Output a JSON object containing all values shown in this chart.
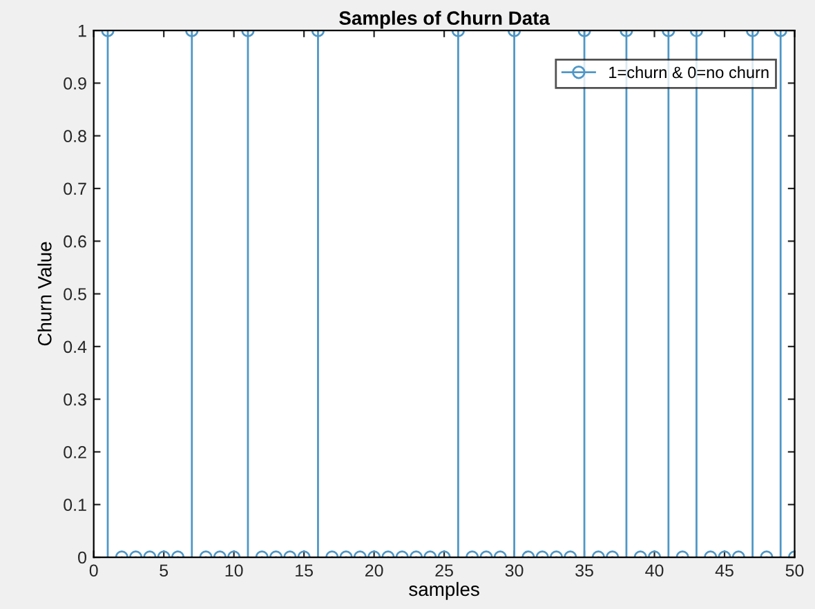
{
  "chart_data": {
    "type": "lollipop",
    "title": "Samples of Churn Data",
    "xlabel": "samples",
    "ylabel": "Churn Value",
    "x": [
      1,
      2,
      3,
      4,
      5,
      6,
      7,
      8,
      9,
      10,
      11,
      12,
      13,
      14,
      15,
      16,
      17,
      18,
      19,
      20,
      21,
      22,
      23,
      24,
      25,
      26,
      27,
      28,
      29,
      30,
      31,
      32,
      33,
      34,
      35,
      36,
      37,
      38,
      39,
      40,
      41,
      42,
      43,
      44,
      45,
      46,
      47,
      48,
      49,
      50
    ],
    "series": [
      {
        "name": "1=churn & 0=no churn",
        "color": "#4f97c6",
        "values": [
          1,
          0,
          0,
          0,
          0,
          0,
          1,
          0,
          0,
          0,
          1,
          0,
          0,
          0,
          0,
          1,
          0,
          0,
          0,
          0,
          0,
          0,
          0,
          0,
          0,
          1,
          0,
          0,
          0,
          1,
          0,
          0,
          0,
          0,
          1,
          0,
          0,
          1,
          0,
          0,
          1,
          0,
          1,
          0,
          0,
          0,
          1,
          0,
          1,
          0
        ]
      }
    ],
    "xlim": [
      0,
      50
    ],
    "xticks": [
      0,
      5,
      10,
      15,
      20,
      25,
      30,
      35,
      40,
      45,
      50
    ],
    "ylim": [
      0,
      1
    ],
    "yticks": [
      0,
      0.1,
      0.2,
      0.3,
      0.4,
      0.5,
      0.6,
      0.7,
      0.8,
      0.9,
      1
    ],
    "marker": "circle",
    "legend": "top right"
  }
}
